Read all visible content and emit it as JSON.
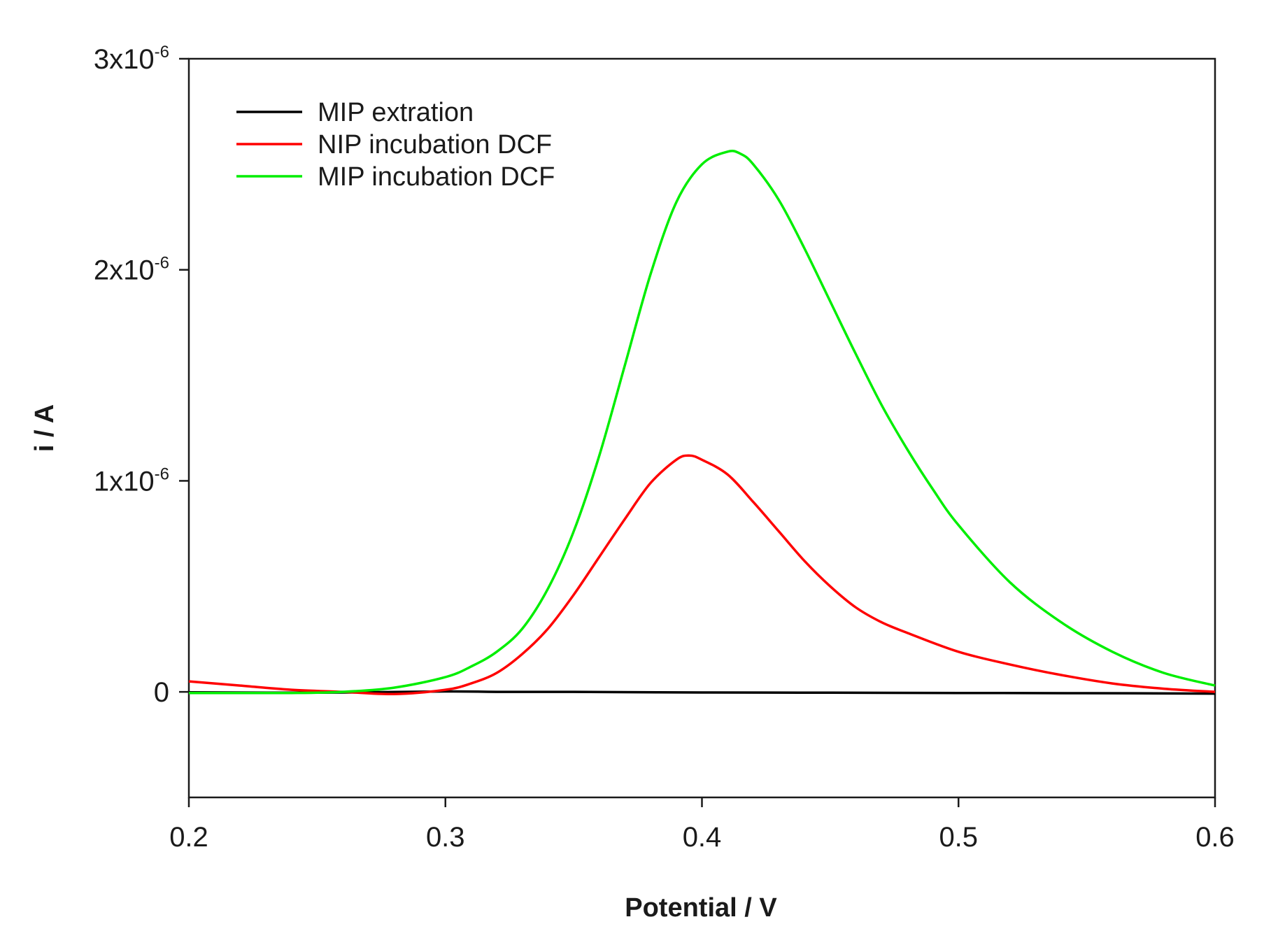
{
  "chart_data": {
    "type": "line",
    "title": "",
    "xlabel": "Potential / V",
    "ylabel": "i / A",
    "xlim": [
      0.2,
      0.6
    ],
    "ylim": [
      -5e-07,
      3e-06
    ],
    "grid": false,
    "legend_position": "top-left",
    "x_ticks": [
      {
        "value": 0.2,
        "label": "0.2"
      },
      {
        "value": 0.3,
        "label": "0.3"
      },
      {
        "value": 0.4,
        "label": "0.4"
      },
      {
        "value": 0.5,
        "label": "0.5"
      },
      {
        "value": 0.6,
        "label": "0.6"
      }
    ],
    "y_ticks": [
      {
        "value": 0,
        "base": "0",
        "exp": ""
      },
      {
        "value": 1e-06,
        "base": "1x10",
        "exp": "-6"
      },
      {
        "value": 2e-06,
        "base": "2x10",
        "exp": "-6"
      },
      {
        "value": 3e-06,
        "base": "3x10",
        "exp": "-6"
      }
    ],
    "series": [
      {
        "name": "MIP extration",
        "color": "#000000",
        "x": [
          0.2,
          0.25,
          0.3,
          0.32,
          0.35,
          0.4,
          0.45,
          0.5,
          0.55,
          0.6
        ],
        "y": [
          -2e-09,
          -4e-09,
          2e-09,
          0,
          0,
          -3e-09,
          -4e-09,
          -5e-09,
          -6e-09,
          -8e-09
        ]
      },
      {
        "name": "NIP incubation DCF",
        "color": "#ff0000",
        "x": [
          0.2,
          0.22,
          0.24,
          0.26,
          0.28,
          0.3,
          0.31,
          0.32,
          0.33,
          0.34,
          0.35,
          0.36,
          0.37,
          0.38,
          0.39,
          0.395,
          0.4,
          0.41,
          0.42,
          0.43,
          0.44,
          0.45,
          0.46,
          0.47,
          0.48,
          0.5,
          0.52,
          0.54,
          0.56,
          0.58,
          0.6
        ],
        "y": [
          5e-08,
          3e-08,
          1e-08,
          0,
          -1e-08,
          1e-08,
          4e-08,
          9e-08,
          1.8e-07,
          3e-07,
          4.6e-07,
          6.4e-07,
          8.2e-07,
          9.9e-07,
          1.1e-06,
          1.12e-06,
          1.1e-06,
          1.03e-06,
          9e-07,
          7.6e-07,
          6.2e-07,
          5e-07,
          4e-07,
          3.3e-07,
          2.8e-07,
          1.9e-07,
          1.3e-07,
          8e-08,
          4e-08,
          1.5e-08,
          0
        ]
      },
      {
        "name": "MIP incubation DCF",
        "color": "#00ee00",
        "x": [
          0.2,
          0.24,
          0.26,
          0.28,
          0.3,
          0.31,
          0.32,
          0.33,
          0.34,
          0.35,
          0.36,
          0.37,
          0.38,
          0.39,
          0.4,
          0.41,
          0.415,
          0.42,
          0.43,
          0.44,
          0.45,
          0.46,
          0.47,
          0.48,
          0.49,
          0.5,
          0.52,
          0.54,
          0.56,
          0.58,
          0.6
        ],
        "y": [
          -5e-09,
          -5e-09,
          0,
          2e-08,
          7e-08,
          1.2e-07,
          1.9e-07,
          3e-07,
          4.9e-07,
          7.6e-07,
          1.12e-06,
          1.55e-06,
          1.98e-06,
          2.32e-06,
          2.5e-06,
          2.56e-06,
          2.55e-06,
          2.5e-06,
          2.33e-06,
          2.1e-06,
          1.85e-06,
          1.6e-06,
          1.36e-06,
          1.15e-06,
          9.6e-07,
          7.9e-07,
          5.2e-07,
          3.3e-07,
          1.9e-07,
          9e-08,
          3e-08
        ]
      }
    ]
  }
}
